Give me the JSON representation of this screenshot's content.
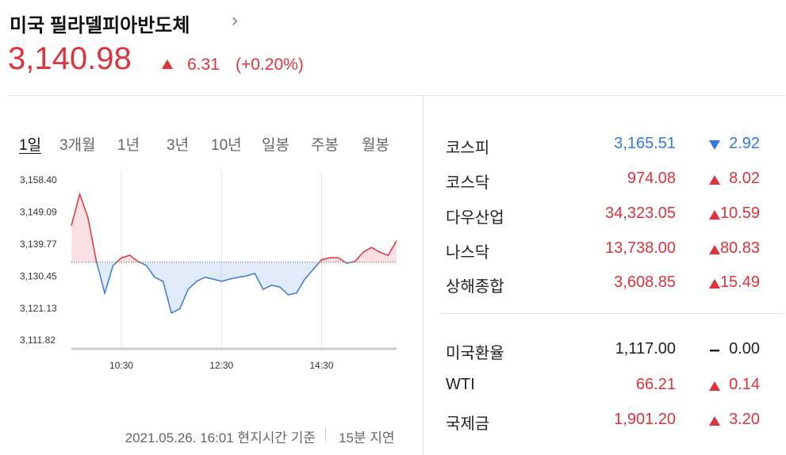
{
  "header": {
    "title": "미국 필라델피아반도체",
    "price": "3,140.98",
    "change": "6.31",
    "change_pct": "(+0.20%)"
  },
  "tabs": [
    "1일",
    "3개월",
    "1년",
    "3년",
    "10년",
    "일봉",
    "주봉",
    "월봉"
  ],
  "selected_tab": 0,
  "chart_data": {
    "type": "line",
    "x": [
      "09:30",
      "09:40",
      "09:50",
      "10:00",
      "10:10",
      "10:20",
      "10:30",
      "10:40",
      "10:50",
      "11:00",
      "11:10",
      "11:20",
      "11:30",
      "11:40",
      "11:50",
      "12:00",
      "12:10",
      "12:20",
      "12:30",
      "12:40",
      "12:50",
      "13:00",
      "13:10",
      "13:20",
      "13:30",
      "13:40",
      "13:50",
      "14:00",
      "14:10",
      "14:20",
      "14:30",
      "14:40",
      "14:50",
      "15:00",
      "15:10",
      "15:20",
      "15:30",
      "15:40",
      "15:50",
      "16:00"
    ],
    "series": [
      {
        "values": [
          3145.3,
          3154.5,
          3147.6,
          3134.9,
          3125.7,
          3133.7,
          3136.0,
          3136.7,
          3134.9,
          3133.7,
          3130.3,
          3129.1,
          3119.9,
          3121.1,
          3126.8,
          3129.1,
          3130.3,
          3129.8,
          3129.1,
          3129.8,
          3130.3,
          3130.7,
          3131.4,
          3126.8,
          3128.0,
          3127.5,
          3125.2,
          3125.7,
          3129.8,
          3132.6,
          3135.4,
          3136.0,
          3136.0,
          3134.4,
          3134.9,
          3137.6,
          3139.0,
          3137.6,
          3136.7,
          3140.98
        ]
      }
    ],
    "previous_close": 3134.67,
    "up_color": "#e0323b",
    "down_color": "#3a78d6",
    "xlim": [
      "09:30",
      "16:00"
    ],
    "xticks": [
      "10:30",
      "12:30",
      "14:30"
    ],
    "x_grid": true,
    "ylim": [
      3109.5,
      3161.4
    ],
    "yticks": [
      {
        "value": 3158.4,
        "label": "3,158.40"
      },
      {
        "value": 3149.09,
        "label": "3,149.09"
      },
      {
        "value": 3139.77,
        "label": "3,139.77"
      },
      {
        "value": 3130.45,
        "label": "3,130.45"
      },
      {
        "value": 3121.13,
        "label": "3,121.13"
      },
      {
        "value": 3111.82,
        "label": "3,111.82"
      }
    ]
  },
  "markets": [
    {
      "name": "코스피",
      "value": "3,165.51",
      "change": "2.92",
      "direction": "down"
    },
    {
      "name": "코스닥",
      "value": "974.08",
      "change": "8.02",
      "direction": "up"
    },
    {
      "name": "다우산업",
      "value": "34,323.05",
      "change": "10.59",
      "direction": "up"
    },
    {
      "name": "나스닥",
      "value": "13,738.00",
      "change": "80.83",
      "direction": "up"
    },
    {
      "name": "상해종합",
      "value": "3,608.85",
      "change": "15.49",
      "direction": "up"
    }
  ],
  "others": [
    {
      "name": "미국환율",
      "value": "1,117.00",
      "change": "0.00",
      "direction": "flat"
    },
    {
      "name": "WTI",
      "value": "66.21",
      "change": "0.14",
      "direction": "up"
    },
    {
      "name": "국제금",
      "value": "1,901.20",
      "change": "3.20",
      "direction": "up"
    }
  ],
  "footer": {
    "timestamp": "2021.05.26. 16:01 현지시간 기준",
    "delay": "15분 지연"
  }
}
